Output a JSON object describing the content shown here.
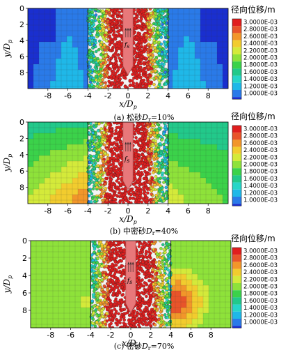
{
  "chart_data": [
    {
      "type": "heatmap",
      "caption_prefix": "(a) 松砂",
      "caption_var": "D",
      "caption_sub": "r",
      "caption_value": "=10%",
      "xlabel": "x/D",
      "xlabel_sub": "p",
      "ylabel": "y/D",
      "ylabel_sub": "p",
      "xticks": [
        -8,
        -6,
        -4,
        -2,
        0,
        2,
        4,
        6,
        8
      ],
      "yticks": [
        0,
        2,
        4,
        6,
        8
      ],
      "xlim": [
        -10,
        10
      ],
      "ylim": [
        0,
        10
      ],
      "pile_label": "f",
      "pile_label_sub": "s",
      "legend": {
        "title": "径向位移/m",
        "levels": [
          "3.0000E-03",
          "2.8000E-03",
          "2.6000E-03",
          "2.4000E-03",
          "2.2000E-03",
          "2.0000E-03",
          "1.8000E-03",
          "1.6000E-03",
          "1.4000E-03",
          "1.2000E-03",
          "1.0000E-03"
        ]
      },
      "far_field_level": [
        0.05,
        0.25
      ],
      "particle_zone_half_width_top": 3.2,
      "particle_zone_half_width_bottom": 3.6
    },
    {
      "type": "heatmap",
      "caption_prefix": "(b) 中密砂",
      "caption_var": "D",
      "caption_sub": "r",
      "caption_value": "=40%",
      "xlabel": "x/D",
      "xlabel_sub": "p",
      "ylabel": "y/D",
      "ylabel_sub": "p",
      "xticks": [
        -8,
        -6,
        -4,
        -2,
        0,
        2,
        4,
        6,
        8
      ],
      "yticks": [
        0,
        2,
        4,
        6,
        8
      ],
      "xlim": [
        -10,
        10
      ],
      "ylim": [
        0,
        10
      ],
      "pile_label": "f",
      "pile_label_sub": "s",
      "legend": {
        "title": "径向位移/m",
        "levels": [
          "3.0000E-03",
          "2.8000E-03",
          "2.6000E-03",
          "2.4000E-03",
          "2.2000E-03",
          "2.0000E-03",
          "1.8000E-03",
          "1.6000E-03",
          "1.4000E-03",
          "1.2000E-03",
          "1.0000E-03"
        ]
      },
      "far_field_level": [
        0.35,
        0.8
      ],
      "particle_zone_half_width_top": 3.4,
      "particle_zone_half_width_bottom": 3.8
    },
    {
      "type": "heatmap",
      "caption_prefix": "(c) 密砂",
      "caption_var": "D",
      "caption_sub": "r",
      "caption_value": "=70%",
      "xlabel": "x/D",
      "xlabel_sub": "p",
      "ylabel": "y/D",
      "ylabel_sub": "p",
      "xticks": [
        -8,
        -6,
        -4,
        -2,
        0,
        2,
        4,
        6,
        8
      ],
      "yticks": [
        0,
        2,
        4,
        6,
        8
      ],
      "xlim": [
        -10,
        10
      ],
      "ylim": [
        0,
        10
      ],
      "pile_label": "f",
      "pile_label_sub": "s",
      "legend": {
        "title": "径向位移/m",
        "levels": [
          "3.0000E-03",
          "2.8000E-03",
          "2.6000E-03",
          "2.4000E-03",
          "2.2000E-03",
          "2.0000E-03",
          "1.8000E-03",
          "1.6000E-03",
          "1.4000E-03",
          "1.2000E-03",
          "1.0000E-03"
        ]
      },
      "far_field_level": [
        0.5,
        0.95
      ],
      "particle_zone_half_width_top": 3.8,
      "particle_zone_half_width_bottom": 4.2
    }
  ],
  "colors": {
    "scale": [
      "#1a2fcf",
      "#2a7ae8",
      "#1fb8e8",
      "#26d6c8",
      "#22c98a",
      "#3bd24a",
      "#8ee23a",
      "#d4ea3a",
      "#f2cc2e",
      "#f2962a",
      "#e8542a",
      "#e01e1e"
    ],
    "pile": "#e8787a",
    "pile_edge": "#b34a4c"
  }
}
